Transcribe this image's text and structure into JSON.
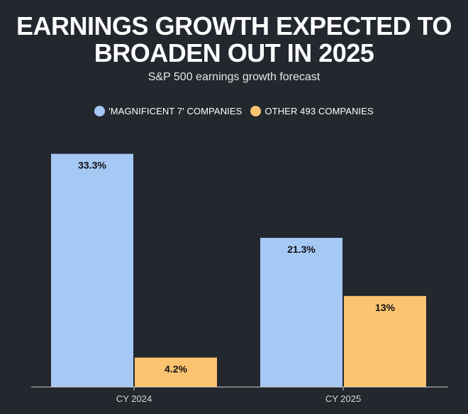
{
  "title_line1": "EARNINGS GROWTH EXPECTED TO",
  "title_line2": "BROADEN OUT IN 2025",
  "subtitle": "S&P 500 earnings growth forecast",
  "colors": {
    "background": "#23272e",
    "series1": "#a6c8f5",
    "series2": "#fcc470",
    "axis": "#cfcfcf"
  },
  "chart_data": {
    "type": "bar",
    "title": "EARNINGS GROWTH EXPECTED TO BROADEN OUT IN 2025",
    "subtitle": "S&P 500 earnings growth forecast",
    "categories": [
      "CY 2024",
      "CY 2025"
    ],
    "series": [
      {
        "name": "'MAGNIFICENT 7' COMPANIES",
        "values": [
          33.3,
          21.3
        ],
        "labels": [
          "33.3%",
          "21.3%"
        ],
        "color": "#a6c8f5"
      },
      {
        "name": "OTHER 493 COMPANIES",
        "values": [
          4.2,
          13
        ],
        "labels": [
          "4.2%",
          "13%"
        ],
        "color": "#fcc470"
      }
    ],
    "ylim": [
      0,
      36
    ],
    "grid": false,
    "legend": "top-center"
  }
}
